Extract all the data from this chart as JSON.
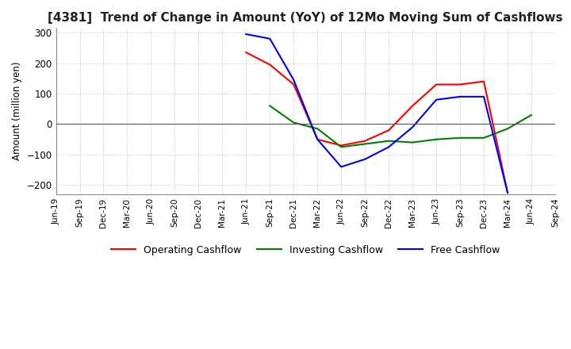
{
  "title": "[4381]  Trend of Change in Amount (YoY) of 12Mo Moving Sum of Cashflows",
  "ylabel": "Amount (million yen)",
  "ylim": [
    -230,
    315
  ],
  "yticks": [
    -200,
    -100,
    0,
    100,
    200,
    300
  ],
  "x_labels": [
    "Jun-19",
    "Sep-19",
    "Dec-19",
    "Mar-20",
    "Jun-20",
    "Sep-20",
    "Dec-20",
    "Mar-21",
    "Jun-21",
    "Sep-21",
    "Dec-21",
    "Mar-22",
    "Jun-22",
    "Sep-22",
    "Dec-22",
    "Mar-23",
    "Jun-23",
    "Sep-23",
    "Dec-23",
    "Mar-24",
    "Jun-24",
    "Sep-24"
  ],
  "operating": [
    null,
    null,
    null,
    null,
    null,
    null,
    null,
    null,
    235,
    195,
    130,
    -50,
    -70,
    -55,
    -20,
    60,
    130,
    130,
    140,
    -225,
    null,
    null
  ],
  "investing": [
    null,
    null,
    null,
    null,
    null,
    null,
    null,
    null,
    null,
    60,
    5,
    -15,
    -75,
    -65,
    -55,
    -60,
    -50,
    -45,
    -45,
    -15,
    30,
    null
  ],
  "free": [
    null,
    null,
    null,
    null,
    null,
    null,
    null,
    null,
    295,
    280,
    145,
    -50,
    -140,
    -115,
    -75,
    -10,
    80,
    90,
    90,
    -225,
    null,
    null
  ],
  "operating_color": "#ff0000",
  "investing_color": "#008000",
  "free_color": "#0000ff",
  "background_color": "#ffffff",
  "grid_color": "#aaaaaa",
  "title_fontsize": 11,
  "title_color": "#222222",
  "legend_labels": [
    "Operating Cashflow",
    "Investing Cashflow",
    "Free Cashflow"
  ]
}
